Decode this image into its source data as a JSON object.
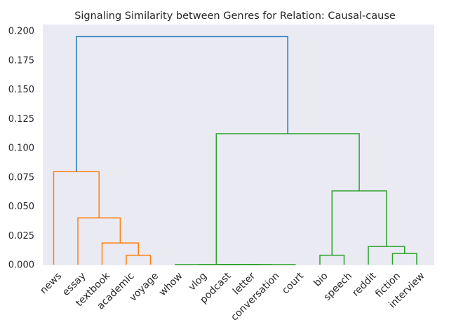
{
  "chart_data": {
    "type": "dendrogram",
    "title": "Signaling Similarity between Genres for Relation: Causal-cause",
    "xlabel": "",
    "ylabel": "",
    "ylim": [
      0,
      0.2
    ],
    "yticks": [
      0.0,
      0.025,
      0.05,
      0.075,
      0.1,
      0.125,
      0.15,
      0.175,
      0.2
    ],
    "ytick_labels": [
      "0.000",
      "0.025",
      "0.050",
      "0.075",
      "0.100",
      "0.125",
      "0.150",
      "0.175",
      "0.200"
    ],
    "grid": false,
    "background": "#eaeaf2",
    "leaves": [
      "news",
      "essay",
      "textbook",
      "academic",
      "voyage",
      "whow",
      "vlog",
      "podcast",
      "letter",
      "conversation",
      "court",
      "bio",
      "speech",
      "reddit",
      "fiction",
      "interview"
    ],
    "colors": {
      "orange": "#ff7f0e",
      "green": "#2ca02c",
      "blue": "#1f77b4"
    },
    "links": [
      {
        "left": 3,
        "right": 4,
        "height": 0.008,
        "color": "orange"
      },
      {
        "left": 2,
        "right": "L0",
        "height": 0.0185,
        "color": "orange"
      },
      {
        "left": 1,
        "right": "L1",
        "height": 0.04,
        "color": "orange"
      },
      {
        "left": 0,
        "right": "L2",
        "height": 0.0795,
        "color": "orange"
      },
      {
        "left": 8,
        "right": 9,
        "height": 0.0,
        "color": "green"
      },
      {
        "left": 7,
        "right": "L4",
        "height": 0.0,
        "color": "green"
      },
      {
        "left": 6,
        "right": "L5",
        "height": 0.0,
        "color": "green"
      },
      {
        "left": "L6",
        "right": 10,
        "height": 0.0,
        "color": "green"
      },
      {
        "left": 5,
        "right": "L7",
        "height": 0.0,
        "color": "green"
      },
      {
        "left": 11,
        "right": 12,
        "height": 0.008,
        "color": "green"
      },
      {
        "left": 14,
        "right": 15,
        "height": 0.0095,
        "color": "green"
      },
      {
        "left": 13,
        "right": "L10",
        "height": 0.0155,
        "color": "green"
      },
      {
        "left": "L9",
        "right": "L11",
        "height": 0.063,
        "color": "green"
      },
      {
        "left": "L8",
        "right": "L12",
        "height": 0.112,
        "color": "green"
      },
      {
        "left": "L3",
        "right": "L13",
        "height": 0.195,
        "color": "blue"
      }
    ]
  }
}
